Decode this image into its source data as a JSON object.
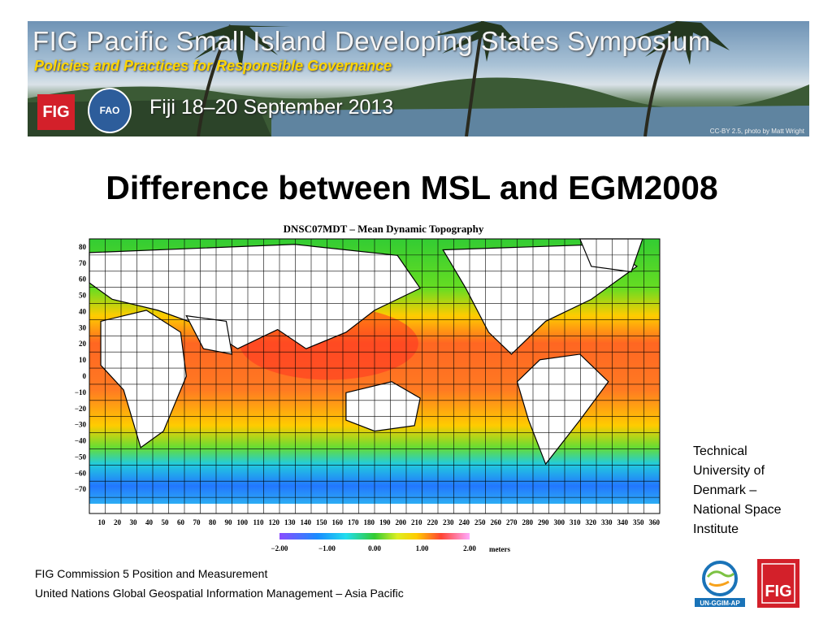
{
  "banner": {
    "title": "FIG Pacific Small Island Developing States Symposium",
    "subtitle": "Policies and Practices for Responsible Governance",
    "date": "Fiji 18–20 September 2013",
    "credit": "CC-BY 2.5, photo by Matt  Wright",
    "fig_label": "FIG",
    "fao_label": "FAO"
  },
  "slide": {
    "title": "Difference between MSL and EGM2008"
  },
  "map": {
    "title": "DNSC07MDT – Mean Dynamic Topography",
    "lat_labels": [
      "80",
      "70",
      "60",
      "50",
      "40",
      "30",
      "20",
      "10",
      "0",
      "−10",
      "−20",
      "−30",
      "−40",
      "−50",
      "−60",
      "−70"
    ],
    "lon_labels": [
      "10",
      "20",
      "30",
      "40",
      "50",
      "60",
      "70",
      "80",
      "90",
      "100",
      "110",
      "120",
      "130",
      "140",
      "150",
      "160",
      "170",
      "180",
      "190",
      "200",
      "210",
      "220",
      "230",
      "240",
      "250",
      "260",
      "270",
      "280",
      "290",
      "300",
      "310",
      "320",
      "330",
      "340",
      "350",
      "360"
    ],
    "colorbar_ticks": [
      "−2.00",
      "−1.00",
      "0.00",
      "1.00",
      "2.00"
    ],
    "colorbar_unit": "meters",
    "colors": {
      "low": "#8a4cff",
      "mid_low": "#1a8cff",
      "mid": "#33cc33",
      "mid_high": "#ffcc00",
      "high": "#ff3333",
      "top": "#ff99ff"
    }
  },
  "caption": {
    "lines": [
      "Technical",
      "University of",
      "Denmark –",
      "National Space",
      "Institute"
    ]
  },
  "footer": {
    "line1": "FIG Commission 5 Position and Measurement",
    "line2": "United Nations Global Geospatial Information Management – Asia Pacific"
  },
  "logos": {
    "ungg_label": "UN-GGIM-AP",
    "fig_label": "FIG"
  }
}
